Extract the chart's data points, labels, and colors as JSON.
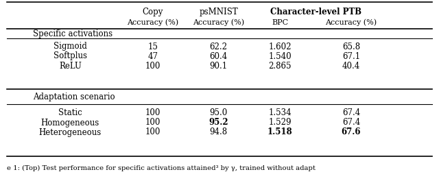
{
  "section1_label": "Specific activations",
  "section2_label": "Adaptation scenario",
  "rows": [
    {
      "label": "Sigmoid",
      "copy": "15",
      "psmnist": "62.2",
      "bpc": "1.602",
      "acc": "65.8",
      "bold_copy": false,
      "bold_psmnist": false,
      "bold_bpc": false,
      "bold_acc": false
    },
    {
      "label": "Softplus",
      "copy": "47",
      "psmnist": "60.4",
      "bpc": "1.540",
      "acc": "67.1",
      "bold_copy": false,
      "bold_psmnist": false,
      "bold_bpc": false,
      "bold_acc": false
    },
    {
      "label": "ReLU",
      "copy": "100",
      "psmnist": "90.1",
      "bpc": "2.865",
      "acc": "40.4",
      "bold_copy": false,
      "bold_psmnist": false,
      "bold_bpc": false,
      "bold_acc": false
    },
    {
      "label": "Static",
      "copy": "100",
      "psmnist": "95.0",
      "bpc": "1.534",
      "acc": "67.4",
      "bold_copy": false,
      "bold_psmnist": false,
      "bold_bpc": false,
      "bold_acc": false
    },
    {
      "label": "Homogeneous",
      "copy": "100",
      "psmnist": "95.2",
      "bpc": "1.529",
      "acc": "67.4",
      "bold_copy": false,
      "bold_psmnist": true,
      "bold_bpc": false,
      "bold_acc": false
    },
    {
      "label": "Heterogeneous",
      "copy": "100",
      "psmnist": "94.8",
      "bpc": "1.518",
      "acc": "67.6",
      "bold_copy": false,
      "bold_psmnist": false,
      "bold_bpc": true,
      "bold_acc": true
    }
  ],
  "caption": "e 1: (Top) Test performance for specific activations attained³ by γ, trained without adapt",
  "col_x": {
    "label": 0.17,
    "copy": 0.348,
    "psmnist": 0.498,
    "bpc": 0.638,
    "acc": 0.8
  },
  "header_fs": 8.5,
  "data_fs": 8.5,
  "caption_fs": 7.2,
  "figsize": [
    6.4,
    2.67
  ],
  "dpi": 100
}
